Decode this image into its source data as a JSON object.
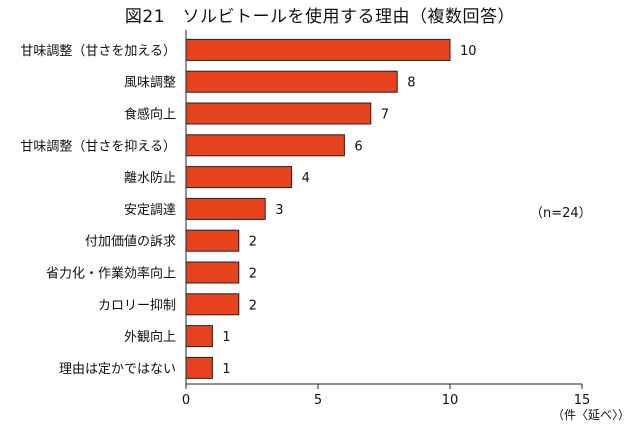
{
  "chart_data": {
    "type": "bar",
    "orientation": "horizontal",
    "title": "図21　ソルビトールを使用する理由（複数回答）",
    "categories": [
      "甘味調整（甘さを加える）",
      "風味調整",
      "食感向上",
      "甘味調整（甘さを抑える）",
      "離水防止",
      "安定調達",
      "付加価値の訴求",
      "省力化・作業効率向上",
      "カロリー抑制",
      "外観向上",
      "理由は定かではない"
    ],
    "values": [
      10,
      8,
      7,
      6,
      4,
      3,
      2,
      2,
      2,
      1,
      1
    ],
    "xlim": [
      0,
      15
    ],
    "xticks": [
      0,
      5,
      10,
      15
    ],
    "xunit": "（件〈延べ〉）",
    "note": "（n=24）",
    "bar_color": "#e8431f",
    "bar_edge_color": "#222222",
    "grid": false
  }
}
